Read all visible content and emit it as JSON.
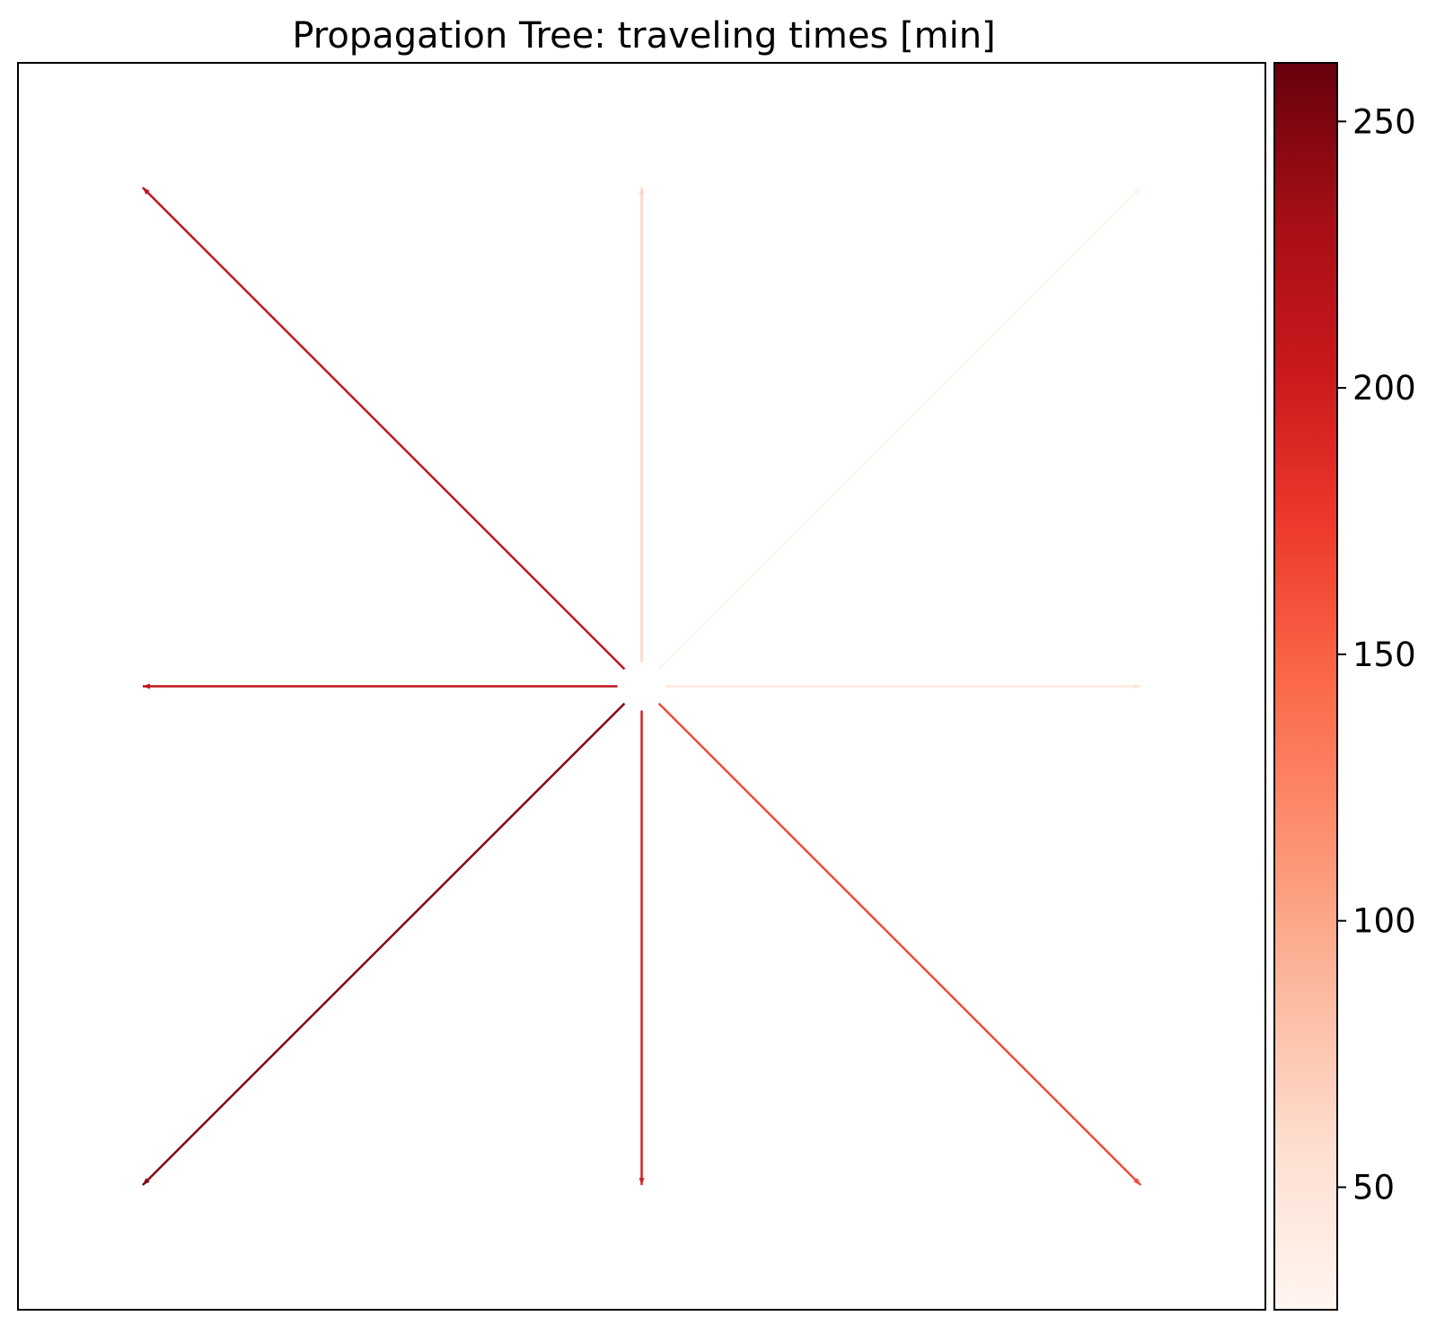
{
  "chart_data": {
    "type": "network",
    "title": "Propagation Tree: traveling times [min]",
    "xlabel": "",
    "ylabel": "",
    "axes_ticks_visible": false,
    "grid": false,
    "source_node": [
      0,
      0
    ],
    "xlim": [
      -1.25,
      1.25
    ],
    "ylim": [
      -1.25,
      1.25
    ],
    "edges": [
      {
        "direction": "N",
        "to": [
          0,
          1
        ],
        "value": 65
      },
      {
        "direction": "NE",
        "to": [
          1,
          1
        ],
        "value": 30
      },
      {
        "direction": "E",
        "to": [
          1,
          0
        ],
        "value": 47
      },
      {
        "direction": "SE",
        "to": [
          1,
          -1
        ],
        "value": 163
      },
      {
        "direction": "S",
        "to": [
          0,
          -1
        ],
        "value": 195
      },
      {
        "direction": "SW",
        "to": [
          -1,
          -1
        ],
        "value": 248
      },
      {
        "direction": "W",
        "to": [
          -1,
          0
        ],
        "value": 212
      },
      {
        "direction": "NW",
        "to": [
          -1,
          1
        ],
        "value": 210
      }
    ],
    "colorbar": {
      "colormap": "Reds",
      "range": [
        27,
        261
      ],
      "ticks": [
        "50",
        "100",
        "150",
        "200",
        "250"
      ],
      "tick_values": [
        50,
        100,
        150,
        200,
        250
      ],
      "stops": [
        "#fff5f0",
        "#fee0d2",
        "#fcbba1",
        "#fc9272",
        "#fb6a4a",
        "#ef3b2c",
        "#cb181d",
        "#a50f15",
        "#67000d"
      ]
    }
  }
}
